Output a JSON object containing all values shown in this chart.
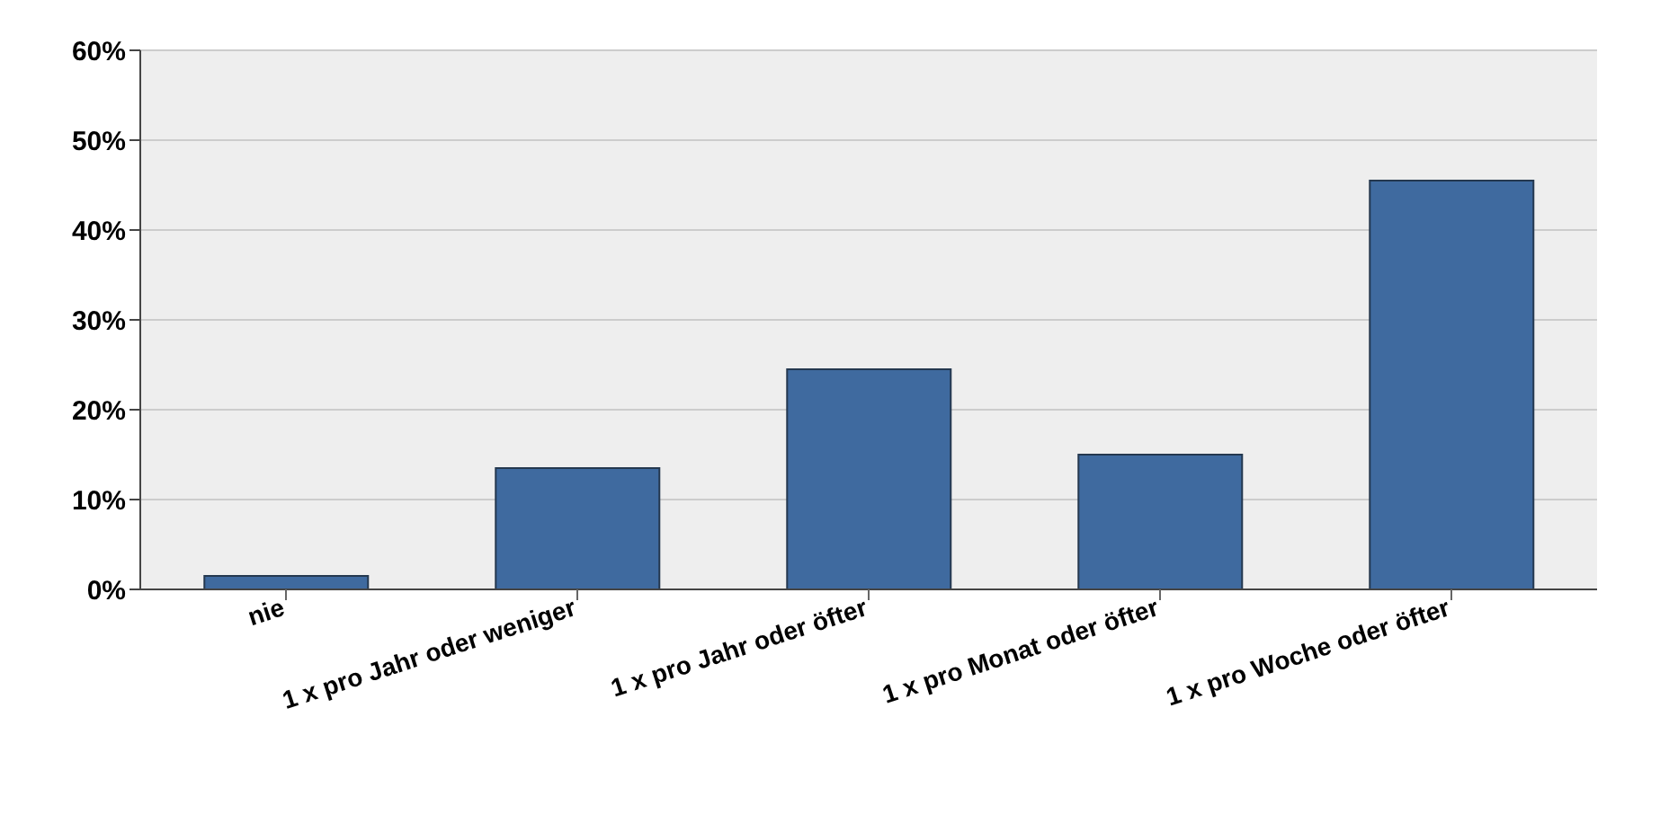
{
  "chart_data": {
    "type": "bar",
    "categories": [
      "nie",
      "1 x pro Jahr oder weniger",
      "1 x pro Jahr oder öfter",
      "1 x pro Monat oder öfter",
      "1 x pro Woche oder öfter"
    ],
    "values": [
      1.5,
      13.5,
      24.5,
      15,
      45.5
    ],
    "color": "#3f6a9f",
    "ylim": [
      0,
      60
    ],
    "yticks": [
      {
        "value": 0,
        "label": "0%"
      },
      {
        "value": 10,
        "label": "10%"
      },
      {
        "value": 20,
        "label": "20%"
      },
      {
        "value": 30,
        "label": "30%"
      },
      {
        "value": 40,
        "label": "40%"
      },
      {
        "value": 50,
        "label": "50%"
      },
      {
        "value": 60,
        "label": "60%"
      }
    ],
    "grid": "y"
  }
}
